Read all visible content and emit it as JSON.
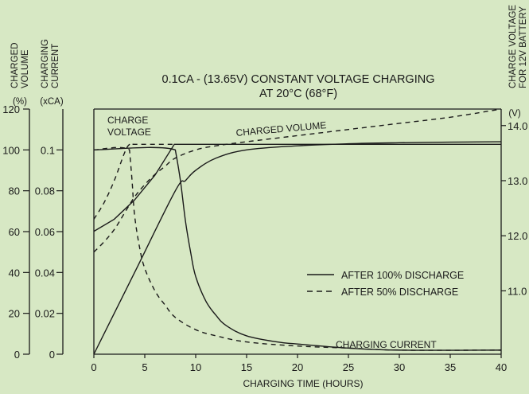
{
  "chart_data": {
    "type": "line",
    "title_line1": "0.1CA - (13.65V) CONSTANT VOLTAGE CHARGING",
    "title_line2": "AT 20°C (68°F)",
    "xlabel": "CHARGING TIME (HOURS)",
    "xlim": [
      0,
      40
    ],
    "x_ticks": [
      0,
      5,
      10,
      15,
      20,
      25,
      30,
      35,
      40
    ],
    "left_axis_volume": {
      "title_line1": "CHARGED",
      "title_line2": "VOLUME",
      "unit": "(%)",
      "range": [
        0,
        120
      ],
      "ticks": [
        0,
        20,
        40,
        60,
        80,
        100,
        120
      ]
    },
    "left_axis_current": {
      "title_line1": "CHARGING",
      "title_line2": "CURRENT",
      "unit": "(xCA)",
      "range": [
        0,
        0.12
      ],
      "ticks": [
        "0",
        "0.02",
        "0.04",
        "0.06",
        "0.08",
        "0.1"
      ]
    },
    "right_axis_voltage": {
      "title_line1": "CHARGE VOLTAGE",
      "title_line2": "FOR 12V BATTERY",
      "unit": "(V)",
      "ticks": [
        "11.0",
        "12.0",
        "13.0",
        "14.0"
      ],
      "tick_values": [
        11.0,
        12.0,
        13.0,
        14.0
      ],
      "range": [
        9.85,
        14.3
      ]
    },
    "annotations": {
      "charge_voltage_line1": "CHARGE",
      "charge_voltage_line2": "VOLTAGE",
      "charged_volume": "CHARGED VOLUME",
      "charging_current": "CHARGING CURRENT"
    },
    "legend": {
      "placement": "right-middle",
      "items": [
        {
          "label": "AFTER 100% DISCHARGE",
          "style": "solid"
        },
        {
          "label": "AFTER 50% DISCHARGE",
          "style": "dashed"
        }
      ]
    },
    "series": [
      {
        "quantity": "charge_voltage",
        "condition": "after_100pct",
        "axis": "voltage",
        "x": [
          0,
          2,
          4,
          6,
          7.9,
          8,
          40
        ],
        "y": [
          12.08,
          12.3,
          12.65,
          13.1,
          13.66,
          13.66,
          13.66
        ]
      },
      {
        "quantity": "charge_voltage",
        "condition": "after_50pct",
        "axis": "voltage",
        "x": [
          0,
          1,
          2,
          3,
          3.5,
          4,
          8
        ],
        "y": [
          12.3,
          12.6,
          13.0,
          13.5,
          13.66,
          13.66,
          13.66
        ]
      },
      {
        "quantity": "charged_volume",
        "condition": "after_100pct",
        "axis": "volume",
        "x": [
          0,
          4,
          8,
          9,
          10,
          12,
          15,
          20,
          25,
          30,
          35,
          40
        ],
        "y": [
          0,
          40,
          80,
          85,
          90,
          96,
          100,
          102,
          103,
          103.5,
          103.8,
          104
        ]
      },
      {
        "quantity": "charged_volume",
        "condition": "after_50pct",
        "axis": "volume",
        "x": [
          0,
          1,
          2,
          3,
          4,
          5,
          6,
          7,
          8,
          10,
          12,
          15,
          20,
          25,
          30,
          35,
          40
        ],
        "y": [
          50,
          55,
          61,
          69,
          77,
          83,
          88,
          92,
          96,
          100,
          102,
          104,
          107,
          110,
          113,
          116,
          120
        ]
      },
      {
        "quantity": "charging_current",
        "condition": "after_100pct",
        "axis": "current",
        "x": [
          0,
          8,
          8.5,
          9,
          9.5,
          10,
          11,
          12,
          13,
          15,
          18,
          20,
          25,
          30,
          40
        ],
        "y": [
          0.1,
          0.1,
          0.085,
          0.065,
          0.05,
          0.038,
          0.026,
          0.019,
          0.014,
          0.009,
          0.006,
          0.005,
          0.003,
          0.002,
          0.002
        ]
      },
      {
        "quantity": "charging_current",
        "condition": "after_50pct",
        "axis": "current",
        "x": [
          0,
          3.5,
          3.75,
          4,
          4.5,
          5,
          6,
          7,
          8,
          10,
          12,
          15,
          20,
          25,
          30,
          40
        ],
        "y": [
          0.1,
          0.1,
          0.085,
          0.068,
          0.052,
          0.042,
          0.031,
          0.024,
          0.018,
          0.012,
          0.009,
          0.006,
          0.004,
          0.003,
          0.002,
          0.002
        ]
      }
    ]
  }
}
